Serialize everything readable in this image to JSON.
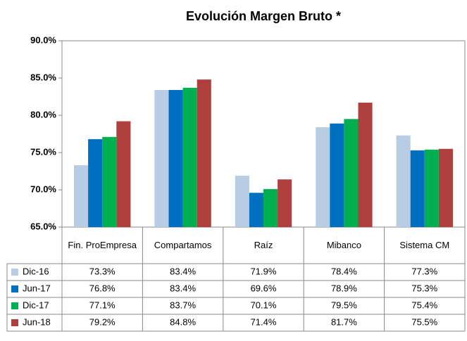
{
  "chart_data": {
    "type": "bar",
    "title": "Evolución Margen Bruto *",
    "categories": [
      "Fin. ProEmpresa",
      "Compartamos",
      "Raíz",
      "Mibanco",
      "Sistema CM"
    ],
    "series": [
      {
        "name": "Dic-16",
        "color": "#b8cce4",
        "values": [
          73.3,
          83.4,
          71.9,
          78.4,
          77.3
        ],
        "value_labels": [
          "73.3%",
          "83.4%",
          "71.9%",
          "78.4%",
          "77.3%"
        ]
      },
      {
        "name": "Jun-17",
        "color": "#0070c0",
        "values": [
          76.8,
          83.4,
          69.6,
          78.9,
          75.3
        ],
        "value_labels": [
          "76.8%",
          "83.4%",
          "69.6%",
          "78.9%",
          "75.3%"
        ]
      },
      {
        "name": "Dic-17",
        "color": "#00b050",
        "values": [
          77.1,
          83.7,
          70.1,
          79.5,
          75.4
        ],
        "value_labels": [
          "77.1%",
          "83.7%",
          "70.1%",
          "79.5%",
          "75.4%"
        ]
      },
      {
        "name": "Jun-18",
        "color": "#b0403e",
        "values": [
          79.2,
          84.8,
          71.4,
          81.7,
          75.5
        ],
        "value_labels": [
          "79.2%",
          "84.8%",
          "71.4%",
          "81.7%",
          "75.5%"
        ]
      }
    ],
    "ylim": [
      65,
      90
    ],
    "yticks": [
      {
        "value": 65,
        "label": "65.0%"
      },
      {
        "value": 70,
        "label": "70.0%"
      },
      {
        "value": 75,
        "label": "75.0%"
      },
      {
        "value": 80,
        "label": "80.0%"
      },
      {
        "value": 85,
        "label": "85.0%"
      },
      {
        "value": 90,
        "label": "90.0%"
      }
    ],
    "grid": false
  }
}
